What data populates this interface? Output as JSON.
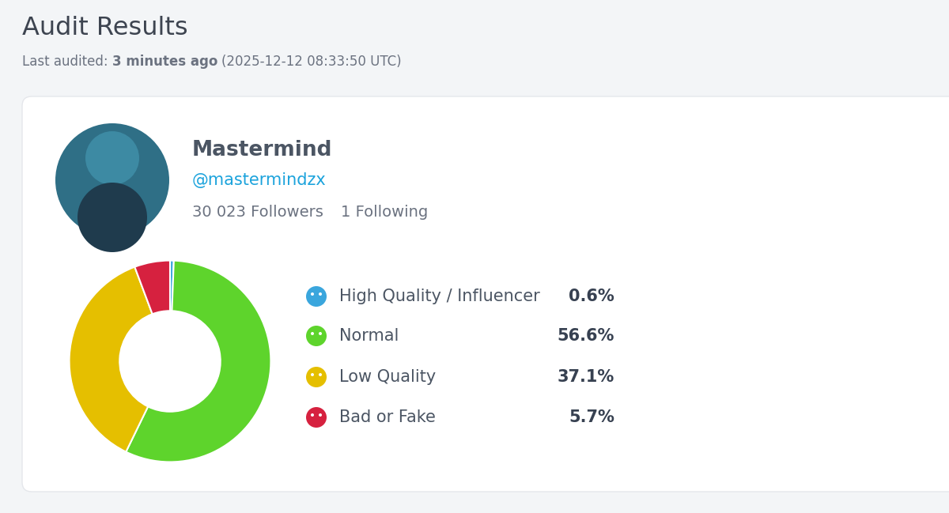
{
  "page": {
    "title": "Audit Results",
    "last_audited": {
      "label": "Last audited:",
      "relative": "3 minutes ago",
      "timestamp": "(2025-12-12 08:33:50 UTC)"
    }
  },
  "profile": {
    "name": "Mastermind",
    "handle": "@mastermindzx",
    "followers": "30 023 Followers",
    "following": "1 Following"
  },
  "chart_data": {
    "type": "donut",
    "categories": [
      "High Quality / Influencer",
      "Normal",
      "Low Quality",
      "Bad or Fake"
    ],
    "values": [
      0.6,
      56.6,
      37.1,
      5.7
    ],
    "value_labels": [
      "0.6%",
      "56.6%",
      "37.1%",
      "5.7%"
    ],
    "colors": [
      "#3aa6dd",
      "#5ed42c",
      "#e5bf00",
      "#d6213f"
    ]
  }
}
